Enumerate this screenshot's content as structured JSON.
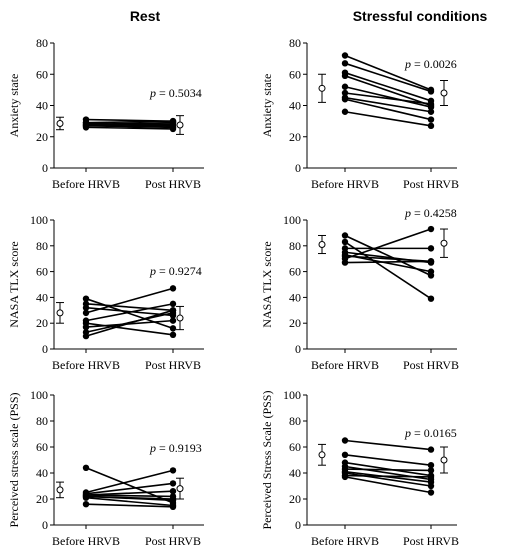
{
  "column_titles": {
    "left": "Rest",
    "right": "Stressful conditions"
  },
  "chart_data": [
    {
      "type": "line",
      "panel": "rest-anxiety",
      "ylabel": "Anxiety state",
      "ylim": [
        0,
        80
      ],
      "yticks": [
        0,
        20,
        40,
        60,
        80
      ],
      "categories": [
        "Before HRVB",
        "Post HRVB"
      ],
      "p_value": "= 0.5034",
      "subjects": [
        [
          31,
          30
        ],
        [
          29,
          30
        ],
        [
          28,
          29
        ],
        [
          28,
          27
        ],
        [
          27,
          26
        ],
        [
          27,
          28
        ],
        [
          26,
          25
        ],
        [
          27,
          29
        ],
        [
          29,
          26
        ]
      ],
      "mean_sd": {
        "before": [
          28.5,
          4
        ],
        "post": [
          27.5,
          6
        ]
      }
    },
    {
      "type": "line",
      "panel": "stress-anxiety",
      "ylabel": "Anxiety state",
      "ylim": [
        0,
        80
      ],
      "yticks": [
        0,
        20,
        40,
        60,
        80
      ],
      "categories": [
        "Before HRVB",
        "Post HRVB"
      ],
      "p_value": "= 0.0026",
      "subjects": [
        [
          72,
          50
        ],
        [
          67,
          49
        ],
        [
          61,
          43
        ],
        [
          59,
          40
        ],
        [
          52,
          39
        ],
        [
          48,
          41
        ],
        [
          45,
          36
        ],
        [
          44,
          31
        ],
        [
          36,
          27
        ]
      ],
      "mean_sd": {
        "before": [
          51,
          9
        ],
        "post": [
          48,
          8
        ]
      }
    },
    {
      "type": "line",
      "panel": "rest-tlx",
      "ylabel": "NASA TLX score",
      "ylim": [
        0,
        100
      ],
      "yticks": [
        0,
        20,
        40,
        60,
        80,
        100
      ],
      "categories": [
        "Before HRVB",
        "Post HRVB"
      ],
      "p_value": "= 0.9274",
      "subjects": [
        [
          39,
          16
        ],
        [
          35,
          30
        ],
        [
          32,
          26
        ],
        [
          28,
          47
        ],
        [
          22,
          35
        ],
        [
          20,
          11
        ],
        [
          17,
          22
        ],
        [
          13,
          28
        ],
        [
          10,
          30
        ]
      ],
      "mean_sd": {
        "before": [
          28,
          8
        ],
        "post": [
          24,
          9
        ]
      }
    },
    {
      "type": "line",
      "panel": "stress-tlx",
      "ylabel": "NASA TLX score",
      "ylim": [
        0,
        100
      ],
      "yticks": [
        0,
        20,
        40,
        60,
        80,
        100
      ],
      "categories": [
        "Before HRVB",
        "Post HRVB"
      ],
      "p_value": "= 0.4258",
      "subjects": [
        [
          88,
          57
        ],
        [
          83,
          39
        ],
        [
          78,
          78
        ],
        [
          75,
          67
        ],
        [
          73,
          60
        ],
        [
          72,
          68
        ],
        [
          70,
          93
        ],
        [
          67,
          68
        ]
      ],
      "mean_sd": {
        "before": [
          81,
          7
        ],
        "post": [
          82,
          11
        ]
      }
    },
    {
      "type": "line",
      "panel": "rest-pss",
      "ylabel": "Perceived stress scale (PSS)",
      "ylim": [
        0,
        100
      ],
      "yticks": [
        0,
        20,
        40,
        60,
        80,
        100
      ],
      "categories": [
        "Before HRVB",
        "Post HRVB"
      ],
      "p_value": "= 0.9193",
      "subjects": [
        [
          44,
          17
        ],
        [
          25,
          42
        ],
        [
          24,
          32
        ],
        [
          23,
          26
        ],
        [
          23,
          22
        ],
        [
          22,
          20
        ],
        [
          22,
          19
        ],
        [
          21,
          15
        ],
        [
          16,
          14
        ]
      ],
      "mean_sd": {
        "before": [
          27,
          6
        ],
        "post": [
          28,
          8
        ]
      }
    },
    {
      "type": "line",
      "panel": "stress-pss",
      "ylabel": "Perceived Stress Scale (PSS)",
      "ylim": [
        0,
        100
      ],
      "yticks": [
        0,
        20,
        40,
        60,
        80,
        100
      ],
      "categories": [
        "Before HRVB",
        "Post HRVB"
      ],
      "p_value": "= 0.0165",
      "subjects": [
        [
          65,
          58
        ],
        [
          54,
          46
        ],
        [
          48,
          38
        ],
        [
          45,
          35
        ],
        [
          43,
          42
        ],
        [
          41,
          33
        ],
        [
          40,
          30
        ],
        [
          38,
          37
        ],
        [
          37,
          25
        ]
      ],
      "mean_sd": {
        "before": [
          54,
          8
        ],
        "post": [
          50,
          10
        ]
      }
    }
  ]
}
